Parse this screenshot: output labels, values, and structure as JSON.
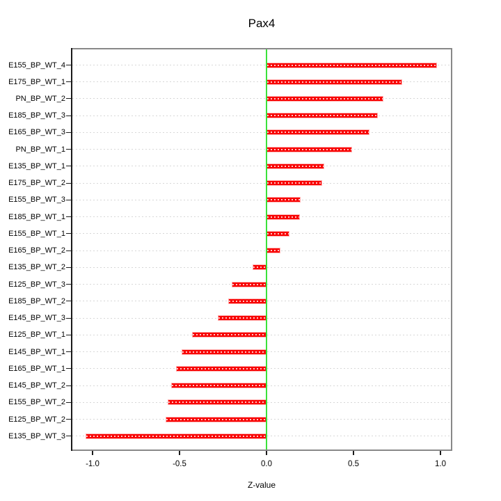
{
  "title": "Pax4",
  "chart_data": {
    "type": "bar",
    "orientation": "horizontal",
    "title": "Pax4",
    "xlabel": "Z-value",
    "ylabel": "",
    "xlim": [
      -1.12,
      1.06
    ],
    "x_ticks": [
      -1.0,
      -0.5,
      0.0,
      0.5,
      1.0
    ],
    "x_tick_labels": [
      "-1.0",
      "-0.5",
      "0.0",
      "0.5",
      "1.0"
    ],
    "grid": true,
    "grid_style": "dotted",
    "zero_reference_line": 0.0,
    "categories": [
      "E155_BP_WT_4",
      "E175_BP_WT_1",
      "PN_BP_WT_2",
      "E185_BP_WT_3",
      "E165_BP_WT_3",
      "PN_BP_WT_1",
      "E135_BP_WT_1",
      "E175_BP_WT_2",
      "E155_BP_WT_3",
      "E185_BP_WT_1",
      "E155_BP_WT_1",
      "E165_BP_WT_2",
      "E135_BP_WT_2",
      "E125_BP_WT_3",
      "E185_BP_WT_2",
      "E145_BP_WT_3",
      "E125_BP_WT_1",
      "E145_BP_WT_1",
      "E165_BP_WT_1",
      "E145_BP_WT_2",
      "E155_BP_WT_2",
      "E125_BP_WT_2",
      "E135_BP_WT_3"
    ],
    "values": [
      0.98,
      0.78,
      0.67,
      0.64,
      0.59,
      0.49,
      0.33,
      0.32,
      0.195,
      0.19,
      0.13,
      0.08,
      -0.08,
      -0.2,
      -0.22,
      -0.28,
      -0.43,
      -0.49,
      -0.52,
      -0.55,
      -0.57,
      -0.58,
      -1.04
    ],
    "colors": {
      "bar": "#f80000",
      "bar_edge": "#ffb0b0",
      "zero_line": "#3ae23a",
      "grid": "#d7d7d7",
      "box_border": "#888888",
      "axis": "#1a1a1a"
    }
  }
}
